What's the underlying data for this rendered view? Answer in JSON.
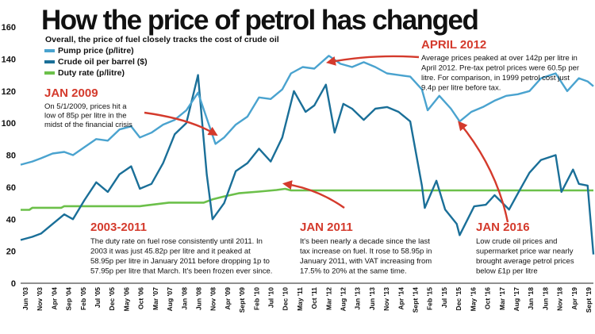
{
  "chart_data": {
    "type": "line",
    "title": "How the price of petrol has changed",
    "subtitle": "Overall, the price of fuel closely tracks the cost of crude oil",
    "ylim": [
      0,
      160
    ],
    "yticks": [
      0,
      20,
      40,
      60,
      80,
      100,
      120,
      140,
      160
    ],
    "x_tick_labels": [
      "Jun '03",
      "Nov '03",
      "Apr '04",
      "Sep '04",
      "Feb '05",
      "Jul '05",
      "Dec '05",
      "May '06",
      "Oct '06",
      "Mar '07",
      "Aug '07",
      "Jan '08",
      "Jun '08",
      "Nov '08",
      "Apr '09",
      "Sept '09",
      "Feb '10",
      "Jul '10",
      "Dec '10",
      "May '11",
      "Oct '11",
      "Mar '12",
      "Aug '12",
      "Jan '13",
      "Jun '13",
      "Nov '13",
      "Apr '14",
      "Sept '14",
      "Feb '15",
      "Jul '15",
      "Dec '15",
      "May '16",
      "Oct '16",
      "Mar '17",
      "Aug '17",
      "Jan '18",
      "Jun '18",
      "Nov '18",
      "Apr '19",
      "Sept '19"
    ],
    "x_start": "2003-06",
    "x_end": "2019-11",
    "series": [
      {
        "name": "Pump price (p/litre)",
        "color": "#4aa3cf",
        "points": [
          [
            "2003-06",
            74
          ],
          [
            "2003-10",
            76
          ],
          [
            "2004-01",
            78
          ],
          [
            "2004-05",
            81
          ],
          [
            "2004-09",
            82
          ],
          [
            "2004-12",
            80
          ],
          [
            "2005-04",
            85
          ],
          [
            "2005-08",
            90
          ],
          [
            "2005-12",
            89
          ],
          [
            "2006-04",
            96
          ],
          [
            "2006-08",
            98
          ],
          [
            "2006-11",
            91
          ],
          [
            "2007-03",
            94
          ],
          [
            "2007-07",
            99
          ],
          [
            "2007-11",
            102
          ],
          [
            "2008-03",
            108
          ],
          [
            "2008-07",
            119
          ],
          [
            "2008-10",
            103
          ],
          [
            "2009-01",
            87
          ],
          [
            "2009-04",
            91
          ],
          [
            "2009-08",
            99
          ],
          [
            "2009-12",
            104
          ],
          [
            "2010-04",
            116
          ],
          [
            "2010-08",
            115
          ],
          [
            "2010-12",
            121
          ],
          [
            "2011-03",
            131
          ],
          [
            "2011-07",
            135
          ],
          [
            "2011-11",
            134
          ],
          [
            "2012-04",
            142
          ],
          [
            "2012-08",
            137
          ],
          [
            "2012-12",
            135
          ],
          [
            "2013-04",
            138
          ],
          [
            "2013-08",
            135
          ],
          [
            "2013-12",
            131
          ],
          [
            "2014-04",
            130
          ],
          [
            "2014-08",
            129
          ],
          [
            "2014-12",
            121
          ],
          [
            "2015-02",
            108
          ],
          [
            "2015-06",
            117
          ],
          [
            "2015-10",
            109
          ],
          [
            "2016-01",
            101
          ],
          [
            "2016-05",
            107
          ],
          [
            "2016-09",
            110
          ],
          [
            "2017-01",
            114
          ],
          [
            "2017-05",
            117
          ],
          [
            "2017-09",
            118
          ],
          [
            "2018-01",
            120
          ],
          [
            "2018-05",
            128
          ],
          [
            "2018-10",
            131
          ],
          [
            "2019-02",
            120
          ],
          [
            "2019-06",
            128
          ],
          [
            "2019-09",
            126
          ],
          [
            "2019-11",
            123
          ]
        ]
      },
      {
        "name": "Crude oil per barrel ($)",
        "color": "#1a6f98",
        "points": [
          [
            "2003-06",
            27
          ],
          [
            "2003-10",
            29
          ],
          [
            "2004-01",
            31
          ],
          [
            "2004-05",
            37
          ],
          [
            "2004-09",
            43
          ],
          [
            "2004-12",
            40
          ],
          [
            "2005-04",
            52
          ],
          [
            "2005-08",
            63
          ],
          [
            "2005-12",
            57
          ],
          [
            "2006-04",
            68
          ],
          [
            "2006-08",
            73
          ],
          [
            "2006-11",
            59
          ],
          [
            "2007-03",
            62
          ],
          [
            "2007-07",
            75
          ],
          [
            "2007-11",
            93
          ],
          [
            "2008-03",
            100
          ],
          [
            "2008-07",
            130
          ],
          [
            "2008-10",
            68
          ],
          [
            "2008-12",
            40
          ],
          [
            "2009-04",
            50
          ],
          [
            "2009-08",
            70
          ],
          [
            "2009-12",
            75
          ],
          [
            "2010-04",
            84
          ],
          [
            "2010-08",
            76
          ],
          [
            "2010-12",
            91
          ],
          [
            "2011-04",
            120
          ],
          [
            "2011-08",
            107
          ],
          [
            "2011-11",
            111
          ],
          [
            "2012-03",
            124
          ],
          [
            "2012-06",
            94
          ],
          [
            "2012-09",
            112
          ],
          [
            "2012-12",
            109
          ],
          [
            "2013-04",
            102
          ],
          [
            "2013-08",
            109
          ],
          [
            "2013-12",
            110
          ],
          [
            "2014-04",
            107
          ],
          [
            "2014-08",
            101
          ],
          [
            "2014-12",
            61
          ],
          [
            "2015-01",
            47
          ],
          [
            "2015-05",
            64
          ],
          [
            "2015-08",
            46
          ],
          [
            "2015-12",
            37
          ],
          [
            "2016-01",
            30
          ],
          [
            "2016-06",
            48
          ],
          [
            "2016-10",
            49
          ],
          [
            "2017-01",
            55
          ],
          [
            "2017-06",
            46
          ],
          [
            "2017-09",
            56
          ],
          [
            "2018-01",
            69
          ],
          [
            "2018-05",
            77
          ],
          [
            "2018-10",
            80
          ],
          [
            "2018-12",
            57
          ],
          [
            "2019-04",
            71
          ],
          [
            "2019-06",
            62
          ],
          [
            "2019-09",
            61
          ],
          [
            "2019-11",
            18
          ]
        ]
      },
      {
        "name": "Duty rate (p/litre)",
        "color": "#6cc04a",
        "points": [
          [
            "2003-06",
            45.82
          ],
          [
            "2003-09",
            45.82
          ],
          [
            "2003-10",
            47.1
          ],
          [
            "2004-08",
            47.1
          ],
          [
            "2004-09",
            48.1
          ],
          [
            "2006-11",
            48.1
          ],
          [
            "2006-12",
            48.35
          ],
          [
            "2007-09",
            50.35
          ],
          [
            "2008-09",
            50.35
          ],
          [
            "2008-12",
            52.35
          ],
          [
            "2009-04",
            54.19
          ],
          [
            "2009-09",
            56.19
          ],
          [
            "2010-04",
            57.19
          ],
          [
            "2010-10",
            58.19
          ],
          [
            "2011-01",
            58.95
          ],
          [
            "2011-03",
            57.95
          ],
          [
            "2019-11",
            57.95
          ]
        ]
      }
    ],
    "annotations": [
      {
        "heading": "JAN 2009",
        "lines": [
          "On 5/1/2009, prices hit a",
          "low of 85p per litre in the",
          "midst of the financial crisis"
        ],
        "target": [
          "2009-01",
          87
        ]
      },
      {
        "heading": "APRIL 2012",
        "lines": [
          "Average prices peaked at over 142p per litre in",
          "April 2012. Pre-tax petrol prices were 60.5p per",
          "litre. For comparison, in 1999 petrol cost just",
          "9.4p per litre before tax."
        ],
        "target": [
          "2012-04",
          142
        ]
      },
      {
        "heading": "2003-2011",
        "lines": [
          "The duty rate on fuel rose consistently until 2011. In",
          "2003 it was just 45.82p per litre and it peaked at",
          "58.95p per litre in January 2011 before dropping 1p to",
          "57.95p per litre that March. It's been frozen ever since."
        ],
        "target": null
      },
      {
        "heading": "JAN 2011",
        "lines": [
          "It's been nearly a decade since the last",
          "tax increase on fuel. It rose to 58.95p in",
          "January 2011, with VAT increasing from",
          "17.5% to 20% at the same time."
        ],
        "target": [
          "2011-01",
          59
        ]
      },
      {
        "heading": "JAN 2016",
        "lines": [
          "Low crude oil prices and",
          "supermarket price war nearly",
          "brought average petrol prices",
          "below £1p per litre"
        ],
        "target": [
          "2016-01",
          101
        ]
      }
    ],
    "grid": false,
    "legend_position": "top-left"
  }
}
